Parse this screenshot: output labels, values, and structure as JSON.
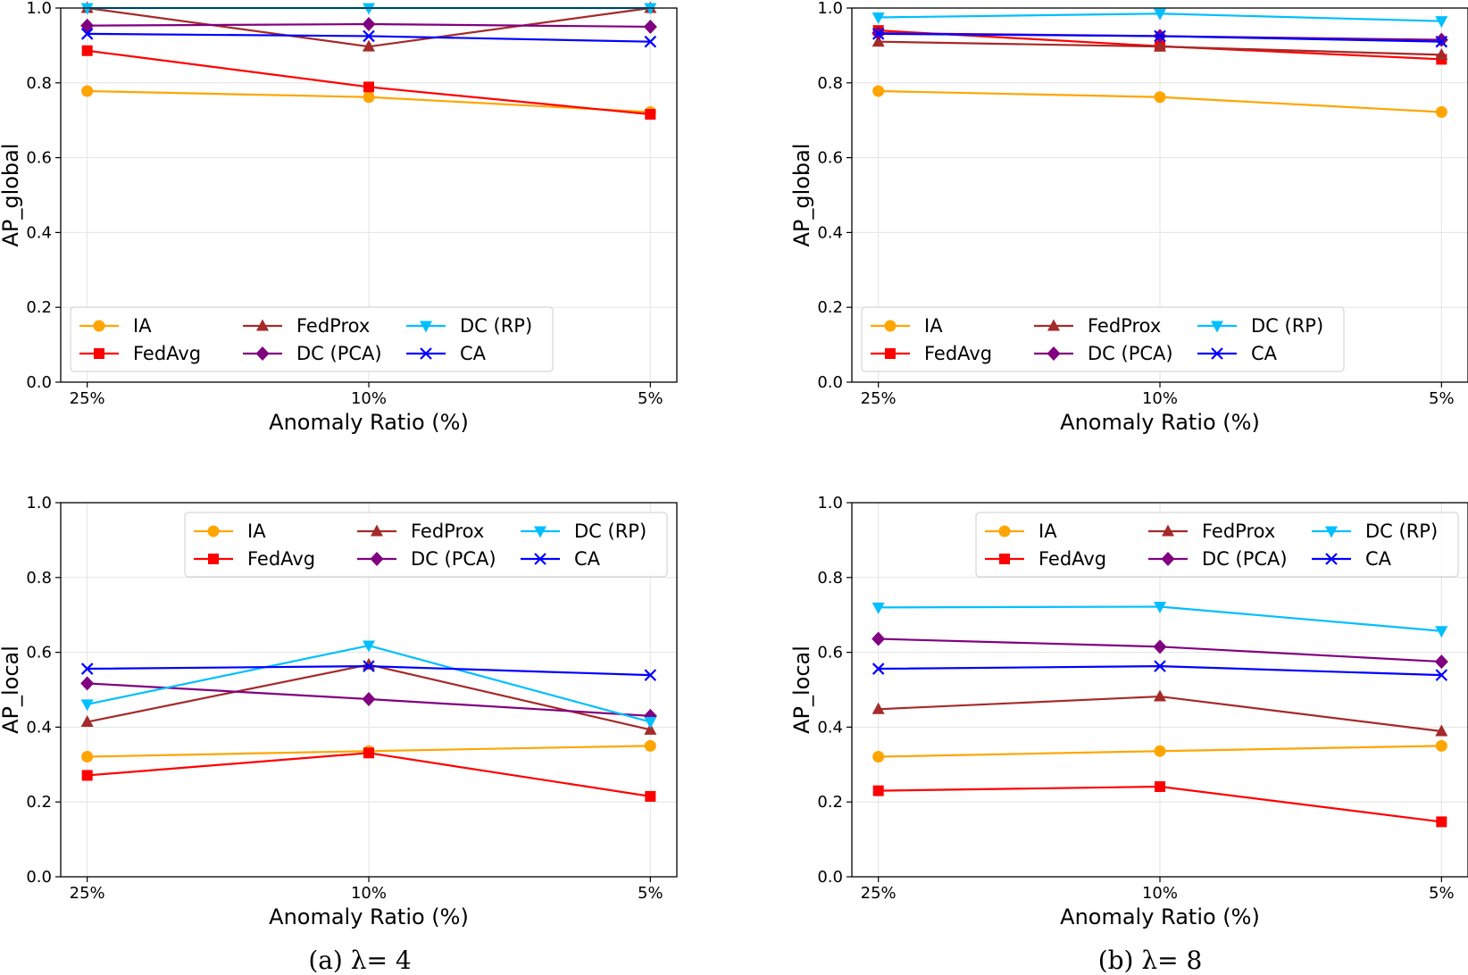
{
  "captions": {
    "a": "(a) λ= 4",
    "b": "(b) λ= 8"
  },
  "legend_order": [
    "IA",
    "FedAvg",
    "FedProx",
    "DC (PCA)",
    "DC (RP)",
    "CA"
  ],
  "series_styles": {
    "IA": {
      "color": "#ffa500",
      "marker": "circle"
    },
    "FedAvg": {
      "color": "#ff0000",
      "marker": "square"
    },
    "FedProx": {
      "color": "#a52a2a",
      "marker": "triangle-up"
    },
    "DC (PCA)": {
      "color": "#800080",
      "marker": "diamond"
    },
    "DC (RP)": {
      "color": "#00bfff",
      "marker": "triangle-down"
    },
    "CA": {
      "color": "#0000ff",
      "marker": "x"
    }
  },
  "chart_data": [
    {
      "type": "line",
      "panel": "a-global",
      "legend_position": "lower-left",
      "categories": [
        "25%",
        "10%",
        "5%"
      ],
      "xlabel": "Anomaly Ratio (%)",
      "ylabel": "AP_global",
      "ylim": [
        0,
        1
      ],
      "yticks": [
        "0.0",
        "0.2",
        "0.4",
        "0.6",
        "0.8",
        "1.0"
      ],
      "grid": true,
      "series": [
        {
          "name": "IA",
          "values": [
            0.778,
            0.762,
            0.722
          ]
        },
        {
          "name": "FedAvg",
          "values": [
            0.886,
            0.789,
            0.716
          ]
        },
        {
          "name": "FedProx",
          "values": [
            1.0,
            0.897,
            1.0
          ]
        },
        {
          "name": "DC (PCA)",
          "values": [
            0.953,
            0.957,
            0.95
          ]
        },
        {
          "name": "DC (RP)",
          "values": [
            1.0,
            1.0,
            1.0
          ]
        },
        {
          "name": "CA",
          "values": [
            0.931,
            0.925,
            0.91
          ]
        }
      ]
    },
    {
      "type": "line",
      "panel": "b-global",
      "legend_position": "lower-left",
      "categories": [
        "25%",
        "10%",
        "5%"
      ],
      "xlabel": "Anomaly Ratio (%)",
      "ylabel": "AP_global",
      "ylim": [
        0,
        1
      ],
      "yticks": [
        "0.0",
        "0.2",
        "0.4",
        "0.6",
        "0.8",
        "1.0"
      ],
      "grid": true,
      "series": [
        {
          "name": "IA",
          "values": [
            0.778,
            0.762,
            0.722
          ]
        },
        {
          "name": "FedAvg",
          "values": [
            0.94,
            0.898,
            0.863
          ]
        },
        {
          "name": "FedProx",
          "values": [
            0.91,
            0.897,
            0.875
          ]
        },
        {
          "name": "DC (PCA)",
          "values": [
            0.933,
            0.925,
            0.915
          ]
        },
        {
          "name": "DC (RP)",
          "values": [
            0.975,
            0.985,
            0.965
          ]
        },
        {
          "name": "CA",
          "values": [
            0.931,
            0.925,
            0.91
          ]
        }
      ]
    },
    {
      "type": "line",
      "panel": "a-local",
      "legend_position": "upper-right",
      "categories": [
        "25%",
        "10%",
        "5%"
      ],
      "xlabel": "Anomaly Ratio (%)",
      "ylabel": "AP_local",
      "ylim": [
        0,
        1
      ],
      "yticks": [
        "0.0",
        "0.2",
        "0.4",
        "0.6",
        "0.8",
        "1.0"
      ],
      "grid": true,
      "series": [
        {
          "name": "IA",
          "values": [
            0.321,
            0.336,
            0.35
          ]
        },
        {
          "name": "FedAvg",
          "values": [
            0.271,
            0.331,
            0.215
          ]
        },
        {
          "name": "FedProx",
          "values": [
            0.414,
            0.567,
            0.393
          ]
        },
        {
          "name": "DC (PCA)",
          "values": [
            0.517,
            0.475,
            0.43
          ]
        },
        {
          "name": "DC (RP)",
          "values": [
            0.461,
            0.618,
            0.414
          ]
        },
        {
          "name": "CA",
          "values": [
            0.556,
            0.563,
            0.539
          ]
        }
      ]
    },
    {
      "type": "line",
      "panel": "b-local",
      "legend_position": "upper-right",
      "categories": [
        "25%",
        "10%",
        "5%"
      ],
      "xlabel": "Anomaly Ratio (%)",
      "ylabel": "AP_local",
      "ylim": [
        0,
        1
      ],
      "yticks": [
        "0.0",
        "0.2",
        "0.4",
        "0.6",
        "0.8",
        "1.0"
      ],
      "grid": true,
      "series": [
        {
          "name": "IA",
          "values": [
            0.321,
            0.336,
            0.35
          ]
        },
        {
          "name": "FedAvg",
          "values": [
            0.23,
            0.241,
            0.147
          ]
        },
        {
          "name": "FedProx",
          "values": [
            0.448,
            0.482,
            0.389
          ]
        },
        {
          "name": "DC (PCA)",
          "values": [
            0.636,
            0.615,
            0.575
          ]
        },
        {
          "name": "DC (RP)",
          "values": [
            0.72,
            0.722,
            0.657
          ]
        },
        {
          "name": "CA",
          "values": [
            0.556,
            0.563,
            0.539
          ]
        }
      ]
    }
  ]
}
